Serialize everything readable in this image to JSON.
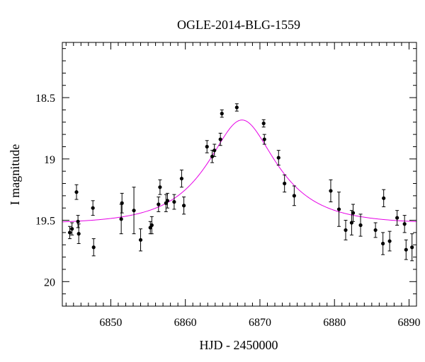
{
  "chart_data": {
    "type": "scatter",
    "title": "OGLE-2014-BLG-1559",
    "xlabel": "HJD - 2450000",
    "ylabel": "I magnitude",
    "xlim": [
      6843.5,
      6891
    ],
    "ylim": [
      20.2,
      18.05
    ],
    "y_inverted": true,
    "xticks": [
      6850,
      6860,
      6870,
      6880,
      6890
    ],
    "xtick_labels": [
      "6850",
      "6860",
      "6870",
      "6880",
      "6890"
    ],
    "yticks": [
      18.5,
      19,
      19.5,
      20
    ],
    "ytick_labels": [
      "18.5",
      "19",
      "19.5",
      "20"
    ],
    "grid": false,
    "legend": "none",
    "colors": {
      "points": "#000000",
      "model": "#e600e6"
    },
    "series": [
      {
        "type": "scatter",
        "x": [
          6844.5,
          6844.8,
          6845.4,
          6845.6,
          6845.7,
          6847.6,
          6847.7,
          6851.4,
          6851.5,
          6853.1,
          6854.0,
          6855.3,
          6855.5,
          6856.4,
          6856.6,
          6857.4,
          6857.6,
          6858.5,
          6859.5,
          6859.8,
          6862.9,
          6863.6,
          6863.9,
          6864.7,
          6864.9,
          6866.9,
          6870.5,
          6870.6,
          6872.5,
          6873.3,
          6874.6,
          6879.5,
          6880.6,
          6881.5,
          6882.3,
          6882.5,
          6883.5,
          6885.5,
          6886.5,
          6886.6,
          6887.4,
          6888.4,
          6889.4,
          6889.6,
          6890.4
        ],
        "y": [
          19.6,
          19.57,
          19.27,
          19.51,
          19.61,
          19.4,
          19.72,
          19.49,
          19.36,
          19.42,
          19.66,
          19.56,
          19.54,
          19.37,
          19.23,
          19.36,
          19.34,
          19.35,
          19.16,
          19.38,
          18.9,
          18.98,
          18.93,
          18.84,
          18.63,
          18.58,
          18.71,
          18.84,
          18.99,
          19.2,
          19.3,
          19.26,
          19.41,
          19.58,
          19.52,
          19.44,
          19.54,
          19.58,
          19.69,
          19.32,
          19.67,
          19.48,
          19.53,
          19.74,
          19.72
        ],
        "yerr": [
          0.05,
          0.05,
          0.06,
          0.05,
          0.08,
          0.06,
          0.07,
          0.12,
          0.08,
          0.19,
          0.09,
          0.05,
          0.07,
          0.06,
          0.06,
          0.07,
          0.06,
          0.06,
          0.07,
          0.07,
          0.05,
          0.05,
          0.05,
          0.05,
          0.03,
          0.03,
          0.03,
          0.04,
          0.06,
          0.07,
          0.08,
          0.09,
          0.14,
          0.08,
          0.1,
          0.07,
          0.09,
          0.06,
          0.09,
          0.07,
          0.08,
          0.06,
          0.07,
          0.08,
          0.11
        ]
      },
      {
        "type": "line",
        "model": "point-lens",
        "t0": 6867.6,
        "tE": 8.0,
        "u0": 0.5,
        "baseline": 19.53
      }
    ]
  }
}
